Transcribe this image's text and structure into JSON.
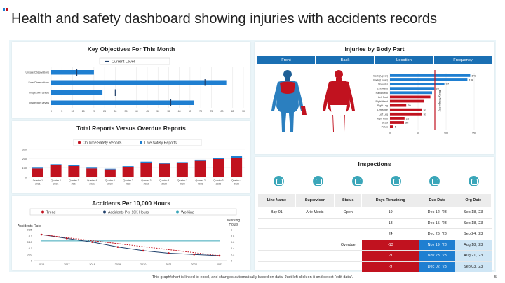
{
  "title": "Health and safety dashboard showing injuries with accidents records",
  "footer": "This graph/chart is linked to excel, and changes automatically based on data. Just left click on it and select “edit data”.",
  "page_number": "5",
  "colors": {
    "red": "#c1121f",
    "blue": "#1f7fd1",
    "teal": "#3aa6b9",
    "darkblue": "#1a6fb3"
  },
  "key_objectives": {
    "title": "Key Objectives For This Month",
    "legend": "Current Level",
    "rows": [
      "Unsafe Observations",
      "Safe Observations",
      "Inspection Levels",
      "Inspection Levels"
    ]
  },
  "body_part": {
    "title": "Injuries by Body Part",
    "tabs": [
      "Front",
      "Back",
      "Location",
      "Frequency"
    ],
    "axis_label": "Body Frequency"
  },
  "reports": {
    "title": "Total Reports Versus Overdue Reports",
    "legend": [
      "On Time Safety Reports",
      "Late Safety Reports"
    ]
  },
  "accidents": {
    "title": "Accidents Per 10,000 Hours",
    "legend": [
      "Trend",
      "Accidents Per 10K Hours",
      "Working"
    ],
    "left_label": "Accidents Rate",
    "right_label": "Working Hours"
  },
  "inspections": {
    "title": "Inspections",
    "icons": [
      "user-icon",
      "supervisor-icon",
      "status-icon",
      "clock-icon",
      "calendar-icon",
      "calendar-check-icon"
    ],
    "headers": [
      "Line Name",
      "Supervisor",
      "Status",
      "Days Remaining",
      "Due Date",
      "Org Date"
    ],
    "rows": [
      {
        "line": "Bay 01",
        "supervisor": "Arie Mexis",
        "status": "Open",
        "days": "19",
        "due": "Dec 12, '23",
        "org": "Sep 18, '23",
        "hl": ""
      },
      {
        "line": "",
        "supervisor": "",
        "status": "",
        "days": "13",
        "due": "Dec 15, '23",
        "org": "Sep 18, '23",
        "hl": ""
      },
      {
        "line": "",
        "supervisor": "",
        "status": "",
        "days": "24",
        "due": "Dec 26, '23",
        "org": "Sep 24, '23",
        "hl": ""
      },
      {
        "line": "",
        "supervisor": "",
        "status": "Overdue",
        "days": "-13",
        "due": "Nov 19, '23",
        "org": "Aug 18, '23",
        "hl": "red"
      },
      {
        "line": "",
        "supervisor": "",
        "status": "",
        "days": "-9",
        "due": "Nov 23, '23",
        "org": "Aug 21, '23",
        "hl": "red"
      },
      {
        "line": "",
        "supervisor": "",
        "status": "",
        "days": "-9",
        "due": "Dec 02, '23",
        "org": "Sep 03, '23",
        "hl": "red"
      }
    ]
  },
  "chart_data": [
    {
      "type": "bar",
      "title": "Key Objectives For This Month",
      "orientation": "horizontal",
      "categories": [
        "Unsafe Observations",
        "Safe Observations",
        "Inspection Levels",
        "Inspection Levels"
      ],
      "values": [
        20,
        82,
        24,
        67
      ],
      "current_level": [
        12,
        72,
        30,
        56
      ],
      "xlim": [
        0,
        90
      ],
      "xticks": [
        "0",
        "5",
        "10",
        "15",
        "20",
        "25",
        "30",
        "35",
        "40",
        "45",
        "50",
        "55",
        "60",
        "65",
        "70",
        "75",
        "80",
        "85",
        "90"
      ]
    },
    {
      "type": "bar",
      "title": "Injuries by Body Part",
      "orientation": "horizontal",
      "categories": [
        "Back (Upper)",
        "Back (Lower)",
        "Shoulder",
        "Left Hand",
        "Hand Neck",
        "Left Foot",
        "Right Hand",
        "Right Leg",
        "Left Knee",
        "Left Leg",
        "Right Foot",
        "Chest",
        "Pelvis"
      ],
      "values": [
        143,
        138,
        97,
        79,
        75,
        72,
        60,
        29,
        57,
        57,
        26,
        25,
        6
      ],
      "labels": [
        "143",
        "138",
        "97",
        "79",
        "",
        "",
        "",
        "29",
        "57",
        "57",
        "26",
        "25",
        "6"
      ],
      "xticks": [
        "0",
        "50",
        "100",
        "150"
      ],
      "xlim": [
        0,
        150
      ]
    },
    {
      "type": "bar",
      "title": "Total Reports Versus Overdue Reports",
      "categories": [
        "Quarter 1 2021",
        "Quarter 2 2021",
        "Quarter 3 2021",
        "Quarter 4 2021",
        "Quarter 1 2022",
        "Quarter 2 2022",
        "Quarter 3 2022",
        "Quarter 4 2022",
        "Quarter 1 2023",
        "Quarter 2 2023",
        "Quarter 3 2023",
        "Quarter 4 2023"
      ],
      "series": [
        {
          "name": "On Time Safety Reports",
          "values": [
            95,
            130,
            120,
            95,
            85,
            110,
            155,
            145,
            150,
            175,
            195,
            210
          ]
        },
        {
          "name": "Late Safety Reports",
          "values": [
            8,
            10,
            9,
            8,
            7,
            9,
            12,
            11,
            12,
            13,
            14,
            15
          ]
        }
      ],
      "ylim": [
        0,
        300
      ],
      "yticks": [
        "0",
        "100",
        "200",
        "300"
      ]
    },
    {
      "type": "line",
      "title": "Accidents Per 10,000 Hours",
      "x": [
        "2016",
        "2017",
        "2018",
        "2019",
        "2020",
        "2021",
        "2022",
        "2023"
      ],
      "series": [
        {
          "name": "Accidents Per 10K Hours",
          "values": [
            0.21,
            0.18,
            0.15,
            0.11,
            0.08,
            0.06,
            0.05,
            0.04
          ]
        },
        {
          "name": "Working",
          "values": [
            0.16,
            0.16,
            0.16,
            0.16,
            0.16,
            0.16,
            0.16,
            0.16
          ]
        }
      ],
      "yticks_left": [
        "0",
        "0.05",
        "0.1",
        "0.15",
        "0.2",
        "0.25"
      ],
      "yticks_right": [
        "0",
        "0.2",
        "0.4",
        "0.6",
        "0.8",
        "1"
      ]
    }
  ]
}
